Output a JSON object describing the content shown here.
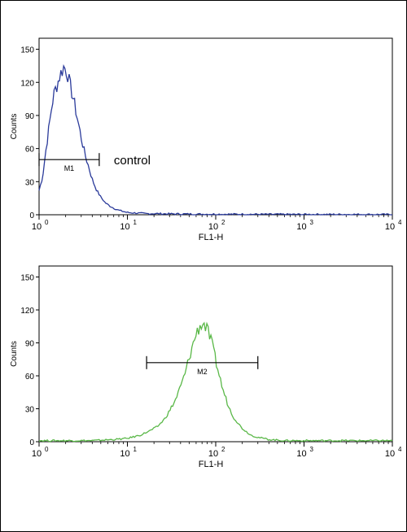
{
  "chart_data": [
    {
      "type": "histogram",
      "xscale": "log",
      "xlim": [
        1,
        10000
      ],
      "ylim": [
        0,
        160
      ],
      "xlabel": "FL1-H",
      "ylabel": "Counts",
      "x_ticks": [
        "10",
        "10",
        "10",
        "10",
        "10"
      ],
      "x_tick_exponents": [
        "0",
        "1",
        "2",
        "3",
        "4"
      ],
      "y_ticks": [
        "0",
        "30",
        "60",
        "90",
        "120",
        "150"
      ],
      "grid": false,
      "series": [
        {
          "color": "#2a3a9a",
          "x": [
            1.0,
            1.1,
            1.2,
            1.3,
            1.4,
            1.5,
            1.6,
            1.7,
            1.8,
            1.9,
            2.0,
            2.1,
            2.2,
            2.4,
            2.6,
            2.8,
            3.0,
            3.3,
            3.6,
            4.0,
            4.5,
            5.0,
            5.6,
            6.3,
            7.0,
            8.0,
            9.0,
            10.0,
            13,
            16,
            20,
            30,
            50,
            100,
            300,
            1000,
            3000,
            10000
          ],
          "y": [
            22,
            35,
            60,
            80,
            100,
            112,
            118,
            125,
            130,
            134,
            132,
            128,
            120,
            108,
            95,
            82,
            70,
            55,
            45,
            32,
            22,
            16,
            11,
            8,
            6,
            4,
            3,
            2,
            1.5,
            1,
            1,
            0.8,
            0.6,
            0.5,
            0.4,
            0.3,
            0.3,
            0.2
          ]
        }
      ],
      "marker": {
        "label": "M1",
        "range": [
          1.0,
          4.8
        ],
        "y": 50
      },
      "annotation": "control"
    },
    {
      "type": "histogram",
      "xscale": "log",
      "xlim": [
        1,
        10000
      ],
      "ylim": [
        0,
        160
      ],
      "xlabel": "FL1-H",
      "ylabel": "Counts",
      "x_ticks": [
        "10",
        "10",
        "10",
        "10",
        "10"
      ],
      "x_tick_exponents": [
        "0",
        "1",
        "2",
        "3",
        "4"
      ],
      "y_ticks": [
        "0",
        "30",
        "60",
        "90",
        "120",
        "150"
      ],
      "grid": false,
      "series": [
        {
          "color": "#5ab848",
          "x": [
            1,
            2,
            4,
            7,
            10,
            14,
            18,
            22,
            26,
            30,
            35,
            40,
            45,
            50,
            55,
            60,
            65,
            70,
            75,
            80,
            90,
            100,
            110,
            120,
            140,
            160,
            200,
            250,
            300,
            400,
            600,
            1000,
            2000,
            5000,
            10000
          ],
          "y": [
            1,
            1,
            1,
            2,
            3,
            6,
            10,
            14,
            20,
            28,
            38,
            50,
            62,
            76,
            88,
            98,
            104,
            108,
            106,
            102,
            90,
            74,
            60,
            48,
            32,
            22,
            12,
            6,
            4,
            2,
            1,
            1,
            1,
            1,
            1
          ]
        }
      ],
      "marker": {
        "label": "M2",
        "range": [
          16.5,
          300
        ],
        "y": 72
      },
      "annotation": ""
    }
  ]
}
